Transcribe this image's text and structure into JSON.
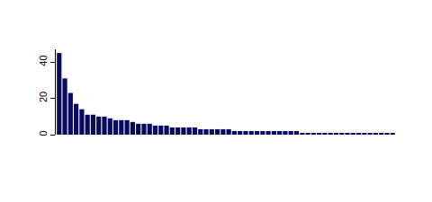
{
  "chart_data": {
    "type": "bar",
    "categories": [
      null,
      null,
      null,
      null,
      null,
      null,
      null,
      null,
      null,
      null,
      null,
      null,
      null,
      null,
      null,
      null,
      null,
      null,
      null,
      null,
      null,
      null,
      null,
      null,
      null,
      null,
      null,
      null,
      null,
      null,
      null,
      null,
      null,
      null,
      null,
      null,
      null,
      null,
      null,
      null,
      null,
      null,
      null,
      null,
      null,
      null,
      null,
      null,
      null,
      null,
      null,
      null,
      null,
      null,
      null,
      null,
      null,
      null,
      null,
      null
    ],
    "values": [
      45,
      31,
      23,
      17,
      14,
      11,
      11,
      10,
      10,
      9,
      8,
      8,
      8,
      7,
      6,
      6,
      6,
      5,
      5,
      5,
      4,
      4,
      4,
      4,
      4,
      3,
      3,
      3,
      3,
      3,
      3,
      2,
      2,
      2,
      2,
      2,
      2,
      2,
      2,
      2,
      2,
      2,
      2,
      1,
      1,
      1,
      1,
      1,
      1,
      1,
      1,
      1,
      1,
      1,
      1,
      1,
      1,
      1,
      1,
      1
    ],
    "color": "#0b0b5e",
    "ylim": [
      0,
      47
    ],
    "yticks": [
      0,
      20,
      40
    ],
    "grid": false,
    "tick_labels": "y"
  }
}
